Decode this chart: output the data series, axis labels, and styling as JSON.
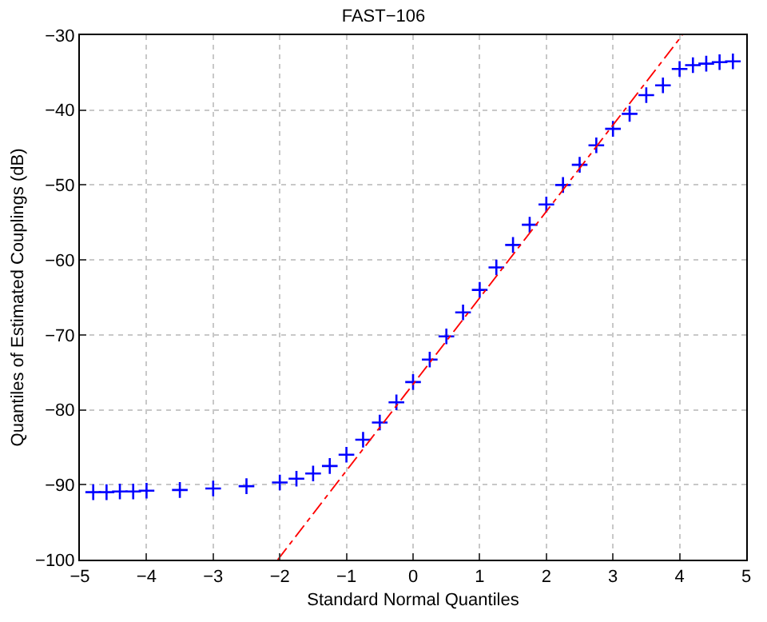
{
  "chart_data": {
    "type": "scatter",
    "title": "FAST−106",
    "xlabel": "Standard Normal Quantiles",
    "ylabel": "Quantiles of Estimated Couplings (dB)",
    "x": [
      -4.8,
      -4.6,
      -4.4,
      -4.2,
      -4.0,
      -3.5,
      -3.0,
      -2.5,
      -2.0,
      -1.75,
      -1.5,
      -1.25,
      -1.0,
      -0.75,
      -0.5,
      -0.25,
      0,
      0.25,
      0.5,
      0.75,
      1.0,
      1.25,
      1.5,
      1.75,
      2.0,
      2.25,
      2.5,
      2.75,
      3.0,
      3.25,
      3.5,
      3.75,
      4.0,
      4.2,
      4.4,
      4.6,
      4.8
    ],
    "series": [
      {
        "color": "#0000ff",
        "marker": "cross",
        "values": [
          -91.0,
          -91.0,
          -90.9,
          -90.9,
          -90.8,
          -90.7,
          -90.5,
          -90.2,
          -89.7,
          -89.2,
          -88.5,
          -87.5,
          -86.0,
          -84.0,
          -81.7,
          -79.0,
          -76.3,
          -73.3,
          -70.2,
          -67.0,
          -64.0,
          -61.0,
          -58.0,
          -55.3,
          -52.6,
          -50.0,
          -47.3,
          -44.7,
          -42.5,
          -40.5,
          -38.0,
          -36.7,
          -34.5,
          -34.0,
          -33.8,
          -33.6,
          -33.5
        ]
      },
      {
        "type": "line",
        "color": "#ff0000",
        "line_style": "dashed",
        "marker": "none",
        "x": [
          -2.03,
          4.04
        ],
        "values": [
          -100,
          -30
        ]
      }
    ],
    "xlim": [
      -5,
      5
    ],
    "xticks": [
      -5,
      -4,
      -3,
      -2,
      -1,
      0,
      1,
      2,
      3,
      4,
      5
    ],
    "ylim": [
      -100,
      -30
    ],
    "yticks": [
      -100,
      -90,
      -80,
      -70,
      -60,
      -50,
      -40,
      -30
    ],
    "grid": true
  }
}
